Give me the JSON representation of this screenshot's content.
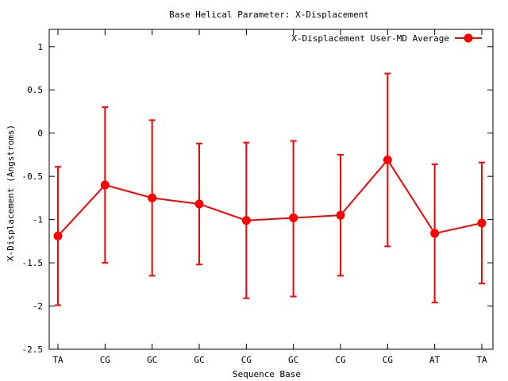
{
  "chart_data": {
    "type": "line",
    "title": "Base  Helical Parameter: X-Displacement",
    "xlabel": "Sequence Base",
    "ylabel": "X-Displacement (Angstroms)",
    "categories": [
      "TA",
      "CG",
      "GC",
      "GC",
      "CG",
      "GC",
      "CG",
      "CG",
      "AT",
      "TA"
    ],
    "ylim": [
      -2.5,
      1.2
    ],
    "yticks": [
      -2.5,
      -2,
      -1.5,
      -1,
      -0.5,
      0,
      0.5,
      1
    ],
    "ytick_labels": [
      "-2.5",
      "-2",
      "-1.5",
      "-1",
      "-0.5",
      "0",
      "0.5",
      "1"
    ],
    "grid": false,
    "legend_position": "top-right",
    "series": [
      {
        "name": "X-Displacement User-MD Average",
        "color": "#ff0000",
        "values": [
          -1.19,
          -0.6,
          -0.75,
          -0.82,
          -1.01,
          -0.98,
          -0.95,
          -0.31,
          -1.16,
          -1.04
        ],
        "error_low": [
          -1.99,
          -1.5,
          -1.65,
          -1.52,
          -1.91,
          -1.89,
          -1.65,
          -1.31,
          -1.96,
          -1.74
        ],
        "error_high": [
          -0.39,
          0.3,
          0.15,
          -0.12,
          -0.11,
          -0.09,
          -0.25,
          0.69,
          -0.36,
          -0.34
        ]
      }
    ]
  }
}
